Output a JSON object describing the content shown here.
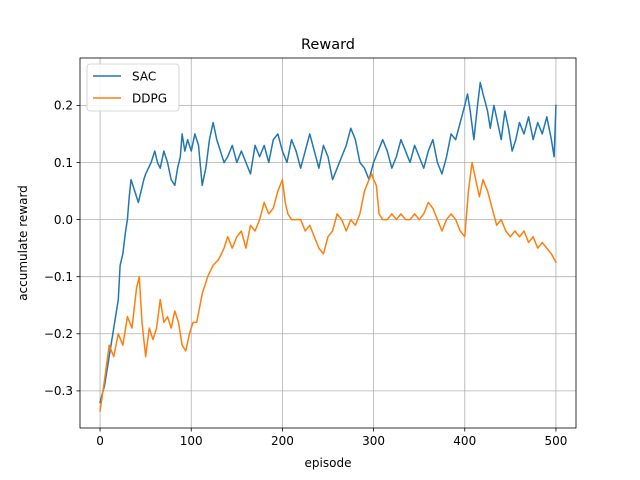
{
  "chart_data": {
    "type": "line",
    "title": "Reward",
    "xlabel": "episode",
    "ylabel": "accumulate reward",
    "xlim": [
      -22,
      522
    ],
    "ylim": [
      -0.365,
      0.283
    ],
    "xticks": [
      0,
      100,
      200,
      300,
      400,
      500
    ],
    "yticks": [
      -0.3,
      -0.2,
      -0.1,
      0.0,
      0.1,
      0.2
    ],
    "ytick_labels": [
      "−0.3",
      "−0.2",
      "−0.1",
      "0.0",
      "0.1",
      "0.2"
    ],
    "grid": true,
    "legend_position": "upper left",
    "series": [
      {
        "name": "SAC",
        "color": "#1f77b4",
        "points": [
          [
            0,
            -0.32
          ],
          [
            5,
            -0.29
          ],
          [
            10,
            -0.24
          ],
          [
            15,
            -0.19
          ],
          [
            20,
            -0.14
          ],
          [
            22,
            -0.08
          ],
          [
            25,
            -0.06
          ],
          [
            28,
            -0.02
          ],
          [
            30,
            0.0
          ],
          [
            32,
            0.04
          ],
          [
            34,
            0.07
          ],
          [
            36,
            0.06
          ],
          [
            38,
            0.05
          ],
          [
            40,
            0.04
          ],
          [
            42,
            0.03
          ],
          [
            45,
            0.05
          ],
          [
            48,
            0.07
          ],
          [
            50,
            0.08
          ],
          [
            53,
            0.09
          ],
          [
            56,
            0.1
          ],
          [
            60,
            0.12
          ],
          [
            63,
            0.1
          ],
          [
            66,
            0.09
          ],
          [
            70,
            0.12
          ],
          [
            74,
            0.1
          ],
          [
            78,
            0.07
          ],
          [
            82,
            0.06
          ],
          [
            85,
            0.09
          ],
          [
            88,
            0.11
          ],
          [
            90,
            0.15
          ],
          [
            93,
            0.12
          ],
          [
            96,
            0.14
          ],
          [
            100,
            0.12
          ],
          [
            104,
            0.15
          ],
          [
            108,
            0.13
          ],
          [
            112,
            0.06
          ],
          [
            116,
            0.09
          ],
          [
            120,
            0.14
          ],
          [
            124,
            0.17
          ],
          [
            128,
            0.14
          ],
          [
            132,
            0.12
          ],
          [
            136,
            0.1
          ],
          [
            140,
            0.11
          ],
          [
            145,
            0.13
          ],
          [
            150,
            0.1
          ],
          [
            155,
            0.12
          ],
          [
            160,
            0.1
          ],
          [
            165,
            0.08
          ],
          [
            170,
            0.13
          ],
          [
            175,
            0.11
          ],
          [
            180,
            0.13
          ],
          [
            185,
            0.1
          ],
          [
            190,
            0.14
          ],
          [
            195,
            0.15
          ],
          [
            200,
            0.12
          ],
          [
            205,
            0.1
          ],
          [
            210,
            0.14
          ],
          [
            215,
            0.12
          ],
          [
            220,
            0.09
          ],
          [
            225,
            0.12
          ],
          [
            230,
            0.15
          ],
          [
            235,
            0.12
          ],
          [
            240,
            0.09
          ],
          [
            245,
            0.13
          ],
          [
            250,
            0.11
          ],
          [
            255,
            0.07
          ],
          [
            260,
            0.09
          ],
          [
            265,
            0.11
          ],
          [
            270,
            0.13
          ],
          [
            275,
            0.16
          ],
          [
            280,
            0.14
          ],
          [
            285,
            0.1
          ],
          [
            290,
            0.09
          ],
          [
            295,
            0.07
          ],
          [
            300,
            0.1
          ],
          [
            305,
            0.12
          ],
          [
            310,
            0.14
          ],
          [
            315,
            0.12
          ],
          [
            320,
            0.09
          ],
          [
            325,
            0.11
          ],
          [
            330,
            0.14
          ],
          [
            335,
            0.12
          ],
          [
            340,
            0.1
          ],
          [
            345,
            0.13
          ],
          [
            350,
            0.11
          ],
          [
            355,
            0.09
          ],
          [
            360,
            0.12
          ],
          [
            365,
            0.14
          ],
          [
            370,
            0.1
          ],
          [
            375,
            0.08
          ],
          [
            380,
            0.11
          ],
          [
            385,
            0.15
          ],
          [
            390,
            0.14
          ],
          [
            395,
            0.17
          ],
          [
            400,
            0.2
          ],
          [
            403,
            0.22
          ],
          [
            406,
            0.19
          ],
          [
            410,
            0.14
          ],
          [
            414,
            0.2
          ],
          [
            417,
            0.24
          ],
          [
            420,
            0.22
          ],
          [
            425,
            0.19
          ],
          [
            428,
            0.16
          ],
          [
            432,
            0.2
          ],
          [
            436,
            0.17
          ],
          [
            440,
            0.14
          ],
          [
            444,
            0.19
          ],
          [
            448,
            0.16
          ],
          [
            452,
            0.12
          ],
          [
            456,
            0.14
          ],
          [
            460,
            0.17
          ],
          [
            465,
            0.15
          ],
          [
            470,
            0.18
          ],
          [
            475,
            0.14
          ],
          [
            480,
            0.17
          ],
          [
            485,
            0.15
          ],
          [
            490,
            0.18
          ],
          [
            495,
            0.14
          ],
          [
            497,
            0.12
          ],
          [
            498,
            0.11
          ],
          [
            500,
            0.2
          ]
        ]
      },
      {
        "name": "DDPG",
        "color": "#ff7f0e",
        "points": [
          [
            0,
            -0.335
          ],
          [
            5,
            -0.28
          ],
          [
            10,
            -0.22
          ],
          [
            15,
            -0.24
          ],
          [
            20,
            -0.2
          ],
          [
            25,
            -0.22
          ],
          [
            30,
            -0.17
          ],
          [
            35,
            -0.19
          ],
          [
            40,
            -0.12
          ],
          [
            43,
            -0.1
          ],
          [
            46,
            -0.18
          ],
          [
            50,
            -0.24
          ],
          [
            54,
            -0.19
          ],
          [
            58,
            -0.21
          ],
          [
            62,
            -0.19
          ],
          [
            66,
            -0.14
          ],
          [
            70,
            -0.18
          ],
          [
            74,
            -0.17
          ],
          [
            78,
            -0.19
          ],
          [
            82,
            -0.16
          ],
          [
            86,
            -0.18
          ],
          [
            90,
            -0.22
          ],
          [
            94,
            -0.23
          ],
          [
            98,
            -0.2
          ],
          [
            102,
            -0.18
          ],
          [
            106,
            -0.18
          ],
          [
            112,
            -0.13
          ],
          [
            118,
            -0.1
          ],
          [
            124,
            -0.08
          ],
          [
            130,
            -0.07
          ],
          [
            136,
            -0.05
          ],
          [
            140,
            -0.03
          ],
          [
            145,
            -0.05
          ],
          [
            150,
            -0.03
          ],
          [
            155,
            -0.02
          ],
          [
            160,
            -0.05
          ],
          [
            165,
            -0.01
          ],
          [
            170,
            -0.02
          ],
          [
            175,
            0.0
          ],
          [
            180,
            0.03
          ],
          [
            185,
            0.01
          ],
          [
            190,
            0.02
          ],
          [
            195,
            0.05
          ],
          [
            200,
            0.07
          ],
          [
            203,
            0.03
          ],
          [
            206,
            0.01
          ],
          [
            210,
            0.0
          ],
          [
            215,
            0.0
          ],
          [
            220,
            0.0
          ],
          [
            225,
            -0.02
          ],
          [
            230,
            -0.01
          ],
          [
            235,
            -0.03
          ],
          [
            240,
            -0.05
          ],
          [
            245,
            -0.06
          ],
          [
            250,
            -0.03
          ],
          [
            255,
            -0.02
          ],
          [
            260,
            0.01
          ],
          [
            265,
            0.0
          ],
          [
            270,
            -0.02
          ],
          [
            275,
            0.0
          ],
          [
            280,
            -0.01
          ],
          [
            285,
            0.01
          ],
          [
            290,
            0.05
          ],
          [
            295,
            0.07
          ],
          [
            298,
            0.08
          ],
          [
            300,
            0.07
          ],
          [
            303,
            0.06
          ],
          [
            306,
            0.01
          ],
          [
            310,
            0.0
          ],
          [
            315,
            0.0
          ],
          [
            320,
            0.01
          ],
          [
            325,
            0.0
          ],
          [
            330,
            0.01
          ],
          [
            335,
            0.0
          ],
          [
            340,
            0.0
          ],
          [
            345,
            0.01
          ],
          [
            350,
            0.0
          ],
          [
            355,
            0.01
          ],
          [
            360,
            0.03
          ],
          [
            365,
            0.02
          ],
          [
            370,
            0.0
          ],
          [
            375,
            -0.02
          ],
          [
            380,
            0.0
          ],
          [
            385,
            0.01
          ],
          [
            390,
            0.0
          ],
          [
            395,
            -0.02
          ],
          [
            400,
            -0.03
          ],
          [
            404,
            0.05
          ],
          [
            408,
            0.1
          ],
          [
            412,
            0.07
          ],
          [
            416,
            0.04
          ],
          [
            420,
            0.07
          ],
          [
            425,
            0.05
          ],
          [
            430,
            0.02
          ],
          [
            435,
            -0.01
          ],
          [
            440,
            0.0
          ],
          [
            445,
            -0.02
          ],
          [
            450,
            -0.03
          ],
          [
            455,
            -0.02
          ],
          [
            460,
            -0.03
          ],
          [
            465,
            -0.02
          ],
          [
            470,
            -0.04
          ],
          [
            475,
            -0.03
          ],
          [
            480,
            -0.05
          ],
          [
            485,
            -0.04
          ],
          [
            490,
            -0.05
          ],
          [
            495,
            -0.06
          ],
          [
            500,
            -0.075
          ]
        ]
      }
    ]
  }
}
